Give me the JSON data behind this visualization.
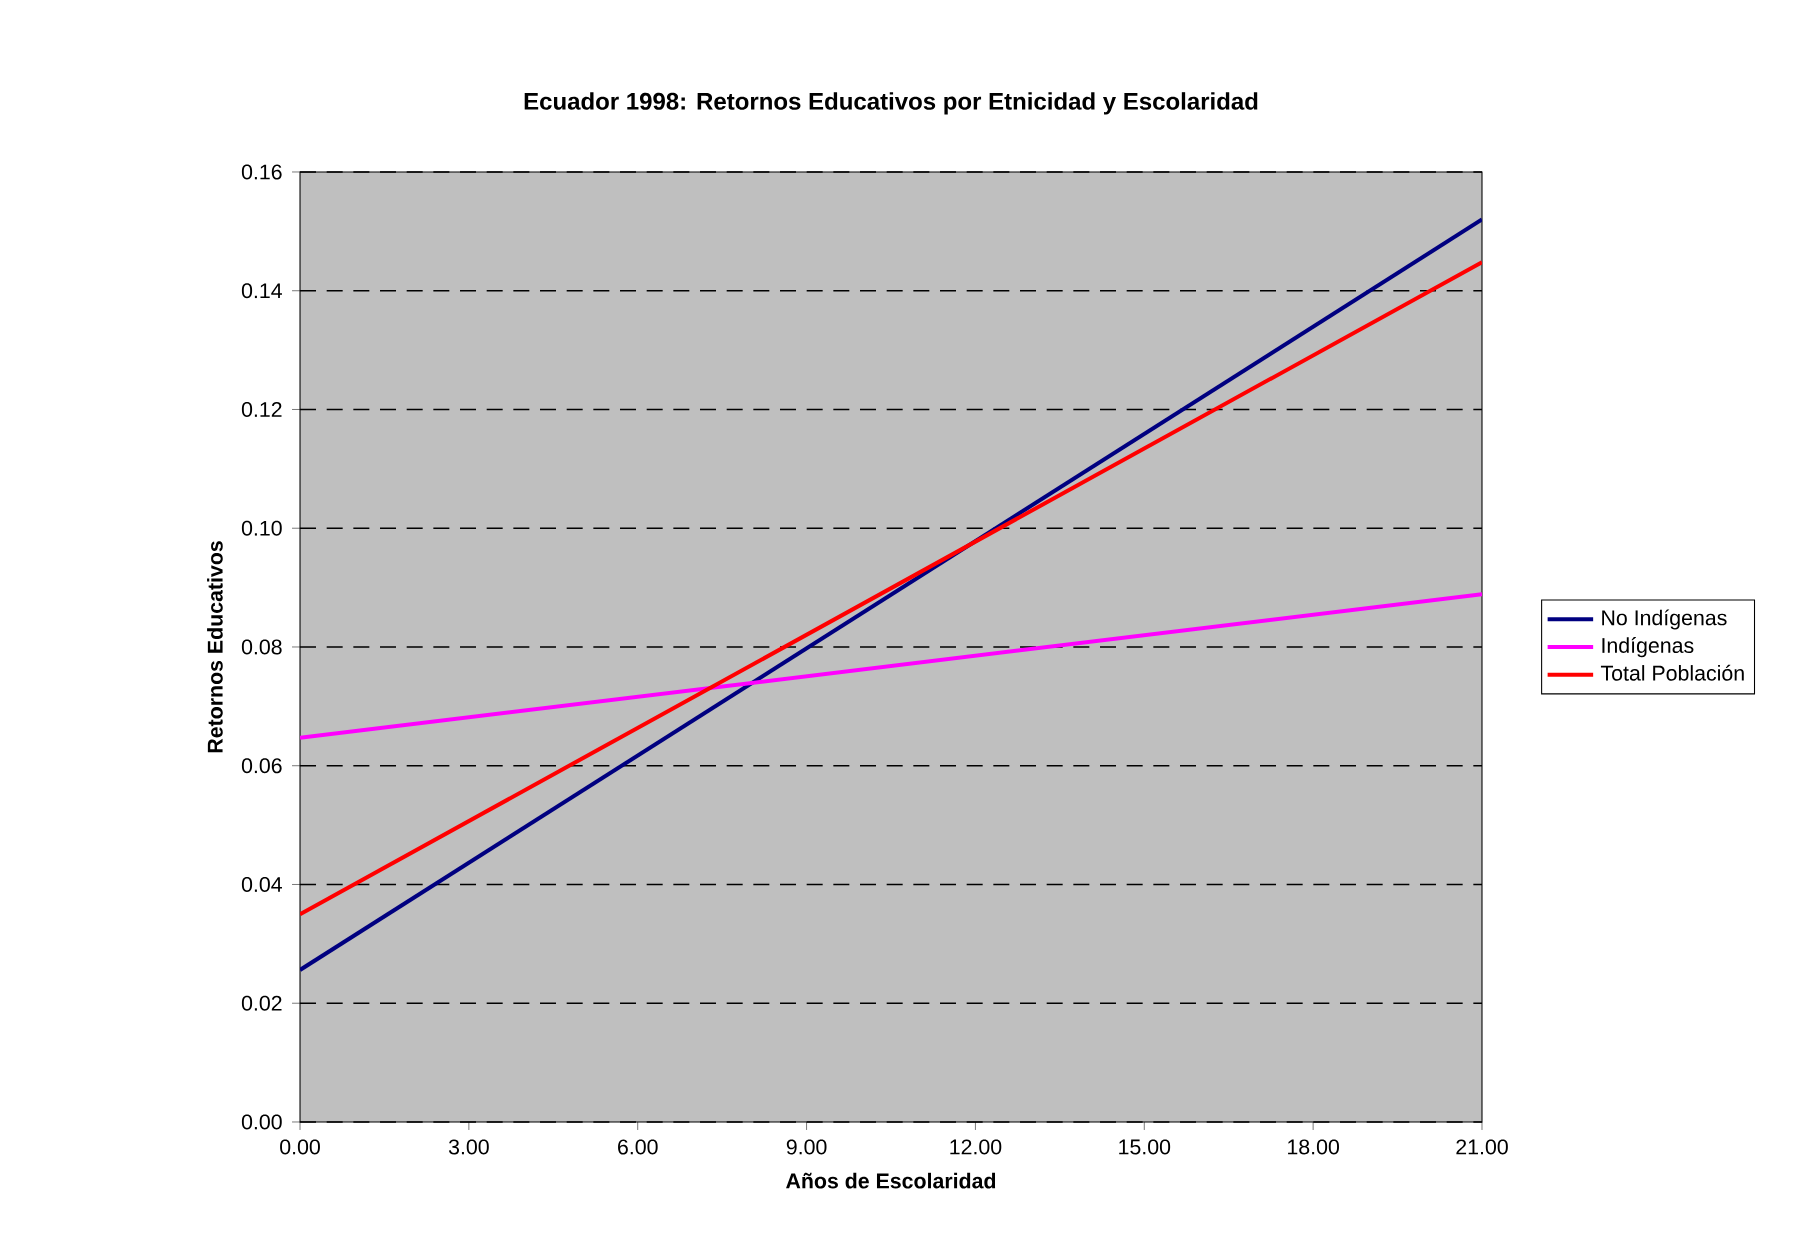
{
  "chart_data": {
    "type": "line",
    "title": "Ecuador 1998: Retornos Educativos por Etnicidad y Escolaridad",
    "xlabel": "Años de Escolaridad",
    "ylabel": "Retornos Educativos",
    "x": [
      0,
      21
    ],
    "series": [
      {
        "name": "No Indígenas",
        "color": "#000080",
        "values": [
          0.0256,
          0.152
        ]
      },
      {
        "name": "Indígenas",
        "color": "#ff00ff",
        "values": [
          0.0647,
          0.0889
        ]
      },
      {
        "name": "Total Población",
        "color": "#ff0000",
        "values": [
          0.035,
          0.1448
        ]
      }
    ],
    "xlim": [
      0,
      21
    ],
    "xticks": [
      {
        "value": 0,
        "label": "0.00"
      },
      {
        "value": 3,
        "label": "3.00"
      },
      {
        "value": 6,
        "label": "6.00"
      },
      {
        "value": 9,
        "label": "9.00"
      },
      {
        "value": 12,
        "label": "12.00"
      },
      {
        "value": 15,
        "label": "15.00"
      },
      {
        "value": 18,
        "label": "18.00"
      },
      {
        "value": 21,
        "label": "21.00"
      }
    ],
    "ylim": [
      0,
      0.16
    ],
    "yticks": [
      {
        "value": 0,
        "label": "0.00"
      },
      {
        "value": 0.02,
        "label": "0.02"
      },
      {
        "value": 0.04,
        "label": "0.04"
      },
      {
        "value": 0.06,
        "label": "0.06"
      },
      {
        "value": 0.08,
        "label": "0.08"
      },
      {
        "value": 0.1,
        "label": "0.10"
      },
      {
        "value": 0.12,
        "label": "0.12"
      },
      {
        "value": 0.14,
        "label": "0.14"
      },
      {
        "value": 0.16,
        "label": "0.16"
      }
    ],
    "grid": "y",
    "legend": "right",
    "marker": "none",
    "line_style": "solid"
  }
}
